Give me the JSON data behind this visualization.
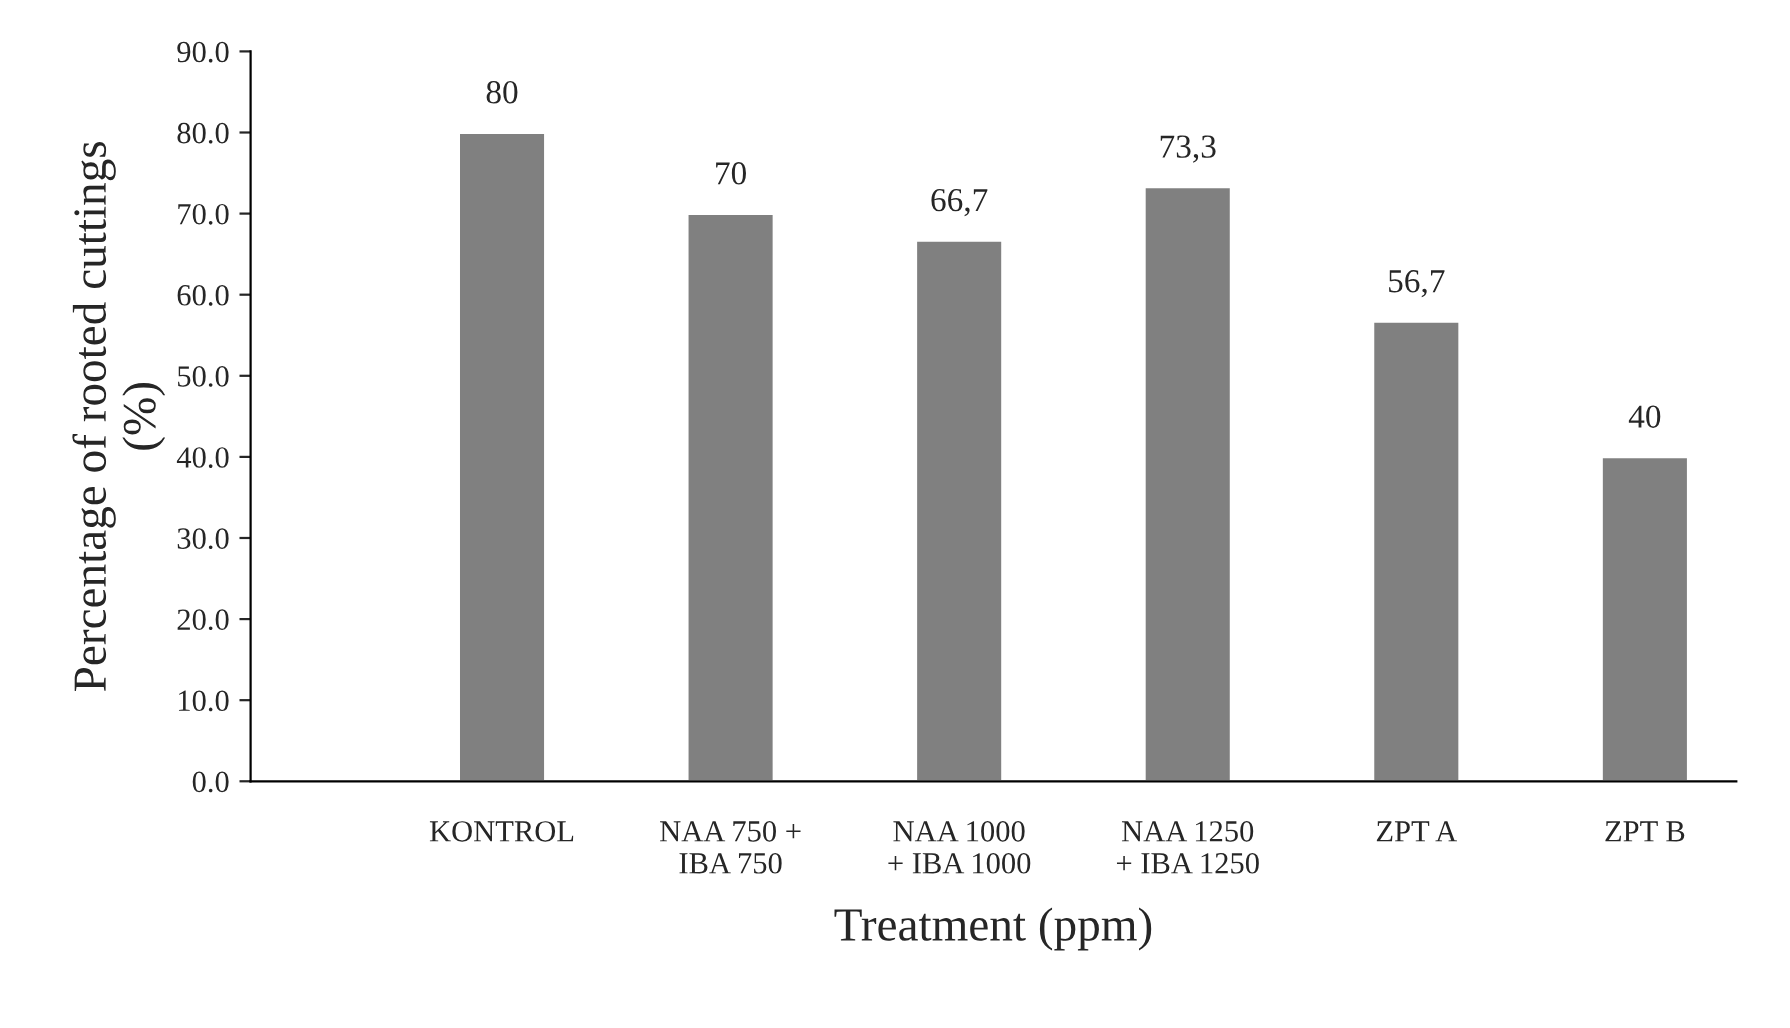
{
  "chart_data": {
    "type": "bar",
    "xlabel": "Treatment (ppm)",
    "ylabel": "Percentage of rooted cuttings\n(%)",
    "categories": [
      "KONTROL",
      "NAA 750 +\nIBA 750",
      "NAA 1000\n+ IBA 1000",
      "NAA 1250\n+ IBA 1250",
      "ZPT A",
      "ZPT B"
    ],
    "values": [
      80,
      70,
      66.7,
      73.3,
      56.7,
      40
    ],
    "value_labels": [
      "80",
      "70",
      "66,7",
      "73,3",
      "56,7",
      "40"
    ],
    "color": "#808080",
    "ylim": [
      0,
      90
    ],
    "yticks": [
      {
        "value": 0,
        "label": "0.0"
      },
      {
        "value": 10,
        "label": "10.0"
      },
      {
        "value": 20,
        "label": "20.0"
      },
      {
        "value": 30,
        "label": "30.0"
      },
      {
        "value": 40,
        "label": "40.0"
      },
      {
        "value": 50,
        "label": "50.0"
      },
      {
        "value": 60,
        "label": "60.0"
      },
      {
        "value": 70,
        "label": "70.0"
      },
      {
        "value": 80,
        "label": "80.0"
      },
      {
        "value": 90,
        "label": "90.0"
      }
    ],
    "grid": false,
    "legend": false
  }
}
